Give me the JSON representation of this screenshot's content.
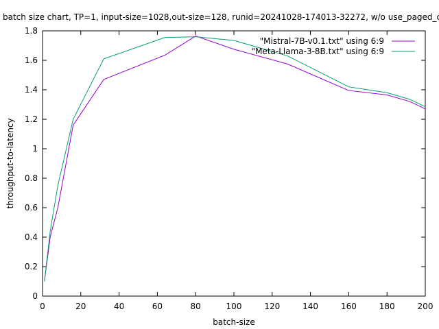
{
  "chart_data": {
    "type": "line",
    "title": "batch size chart, TP=1, input-size=1028,out-size=128, runid=20241028-174013-32272, w/o use_paged_c",
    "xlabel": "batch-size",
    "ylabel": "throughput-to-latency",
    "xlim": [
      0,
      200
    ],
    "ylim": [
      0,
      1.8
    ],
    "xticks": [
      0,
      20,
      40,
      60,
      80,
      100,
      120,
      140,
      160,
      180,
      200
    ],
    "yticks": [
      0,
      0.2,
      0.4,
      0.6,
      0.8,
      1,
      1.2,
      1.4,
      1.6,
      1.8
    ],
    "grid": false,
    "legend_position": "top-right",
    "series": [
      {
        "name": "\"Mistral-7B-v0.1.txt\" using 6:9",
        "color": "#9400d3",
        "x": [
          1,
          4,
          8,
          16,
          32,
          64,
          80,
          100,
          128,
          160,
          180,
          192,
          200
        ],
        "y": [
          0.1,
          0.4,
          0.6,
          1.16,
          1.47,
          1.635,
          1.765,
          1.675,
          1.575,
          1.395,
          1.365,
          1.32,
          1.27
        ]
      },
      {
        "name": "\"Meta-Llama-3-8B.txt\" using 6:9",
        "color": "#009e73",
        "x": [
          1,
          4,
          8,
          16,
          32,
          64,
          80,
          100,
          128,
          160,
          180,
          192,
          200
        ],
        "y": [
          0.1,
          0.44,
          0.75,
          1.2,
          1.61,
          1.755,
          1.76,
          1.735,
          1.63,
          1.42,
          1.38,
          1.335,
          1.285
        ]
      }
    ]
  }
}
